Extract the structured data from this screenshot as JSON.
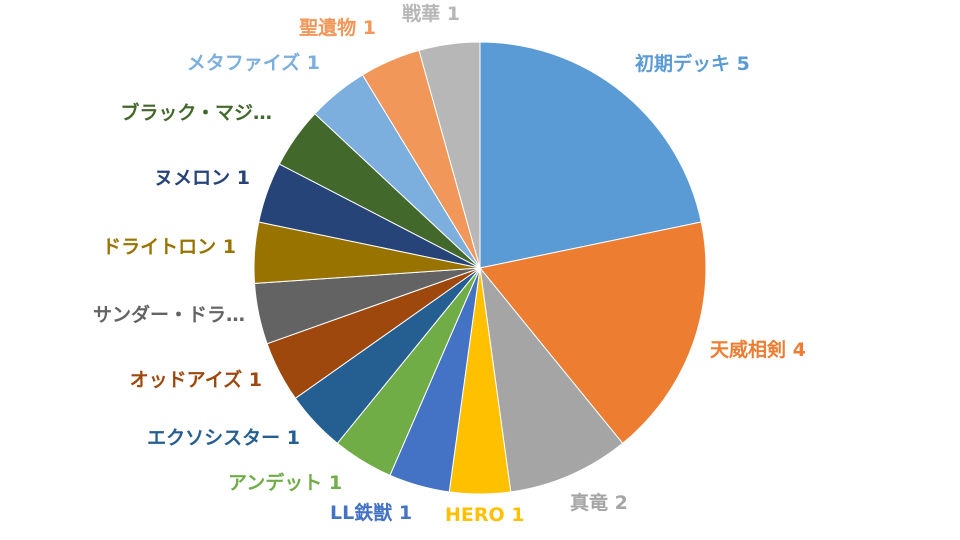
{
  "chart_data": {
    "type": "pie",
    "title": "",
    "slices": [
      {
        "label": "初期デッキ",
        "value": 5,
        "color": "#5B9BD5",
        "label_text": "初期デッキ 5"
      },
      {
        "label": "天威相剣",
        "value": 4,
        "color": "#ED7D31",
        "label_text": "天威相剣 4"
      },
      {
        "label": "真竜",
        "value": 2,
        "color": "#A5A5A5",
        "label_text": "真竜 2"
      },
      {
        "label": "HERO",
        "value": 1,
        "color": "#FFC000",
        "label_text": "HERO 1"
      },
      {
        "label": "LL鉄獣",
        "value": 1,
        "color": "#4472C4",
        "label_text": "LL鉄獣 1"
      },
      {
        "label": "アンデット",
        "value": 1,
        "color": "#70AD47",
        "label_text": "アンデット 1"
      },
      {
        "label": "エクソシスター",
        "value": 1,
        "color": "#255E91",
        "label_text": "エクソシスター 1"
      },
      {
        "label": "オッドアイズ",
        "value": 1,
        "color": "#9E480E",
        "label_text": "オッドアイズ 1"
      },
      {
        "label": "サンダー・ドラ…",
        "value": 1,
        "color": "#636363",
        "label_text": "サンダー・ドラ…"
      },
      {
        "label": "ドライトロン",
        "value": 1,
        "color": "#997300",
        "label_text": "ドライトロン 1"
      },
      {
        "label": "ヌメロン",
        "value": 1,
        "color": "#264478",
        "label_text": "ヌメロン 1"
      },
      {
        "label": "ブラック・マジ…",
        "value": 1,
        "color": "#43682B",
        "label_text": "ブラック・マジ…"
      },
      {
        "label": "メタファイズ",
        "value": 1,
        "color": "#7CAFDD",
        "label_text": "メタファイズ 1"
      },
      {
        "label": "聖遺物",
        "value": 1,
        "color": "#F1975A",
        "label_text": "聖遺物 1"
      },
      {
        "label": "戦華",
        "value": 1,
        "color": "#B7B7B7",
        "label_text": "戦華 1"
      }
    ]
  }
}
